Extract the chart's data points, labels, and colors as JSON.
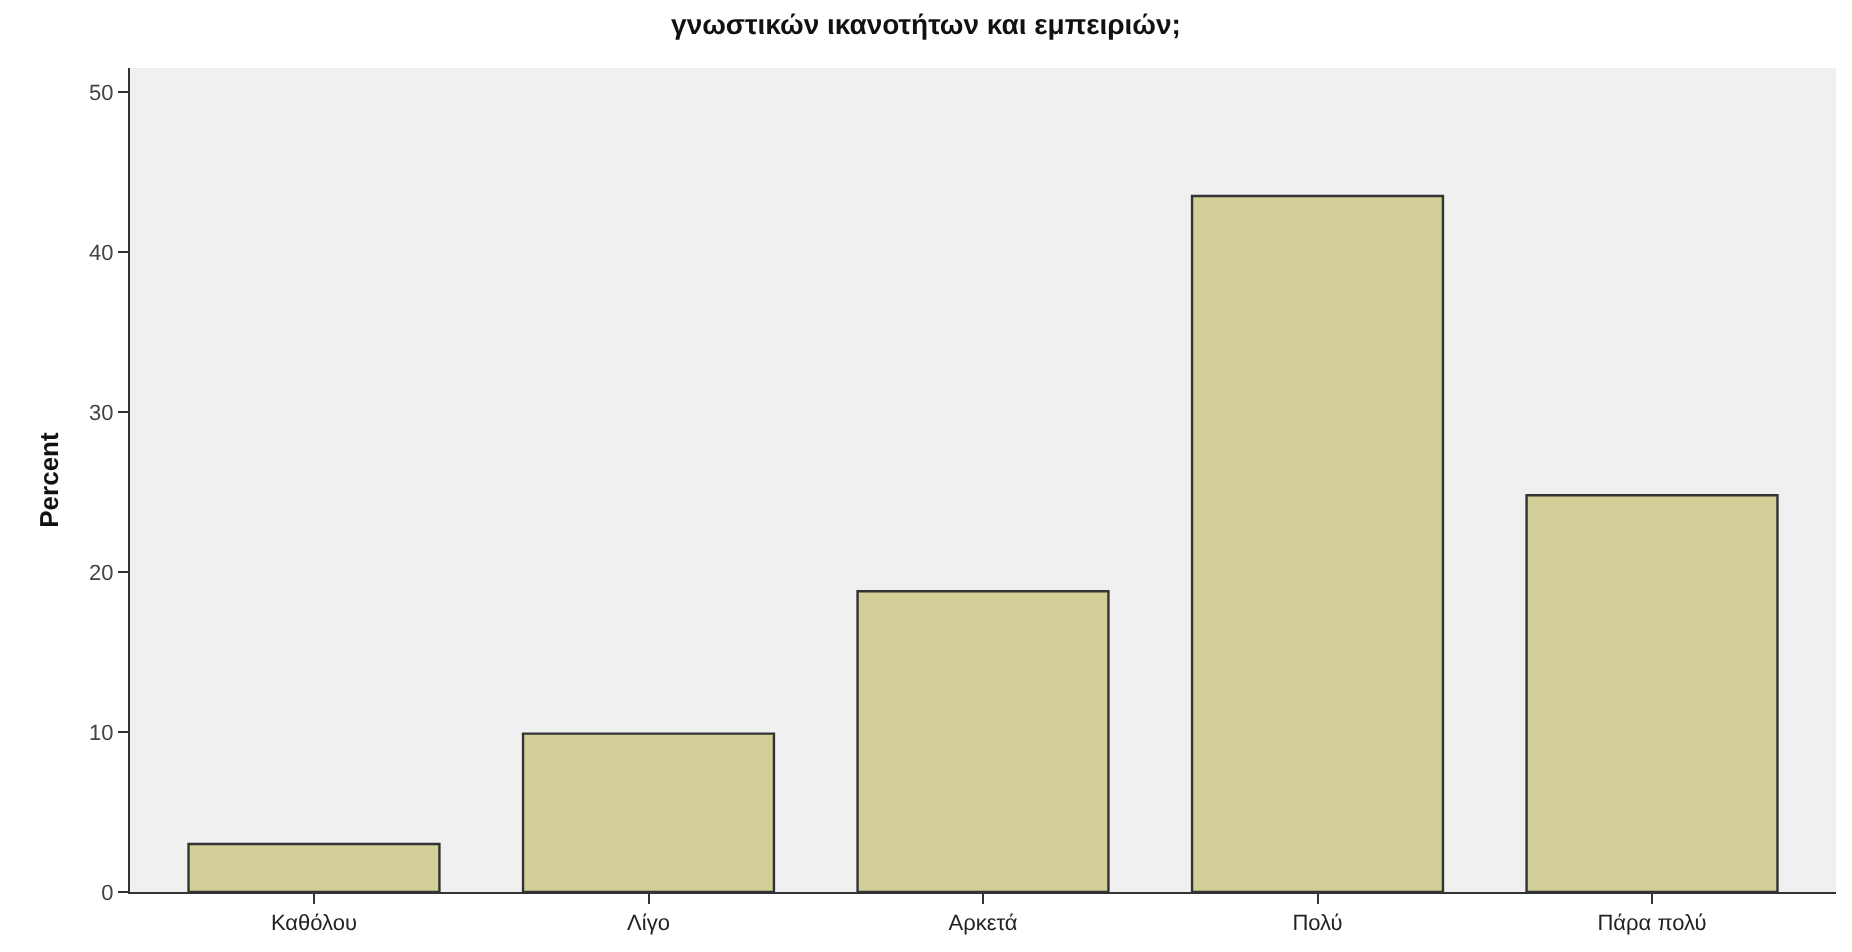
{
  "chart_data": {
    "type": "bar",
    "title": "γνωστικών ικανοτήτων και εμπειριών;",
    "ylabel": "Percent",
    "categories": [
      "Καθόλου",
      "Λίγο",
      "Αρκετά",
      "Πολύ",
      "Πάρα πολύ"
    ],
    "values": [
      3.0,
      9.9,
      18.8,
      43.5,
      24.8
    ],
    "color": "#d3cf98",
    "ylim": [
      0,
      51.5
    ],
    "yticks": [
      0,
      10,
      20,
      30,
      40,
      50
    ],
    "grid": false
  }
}
